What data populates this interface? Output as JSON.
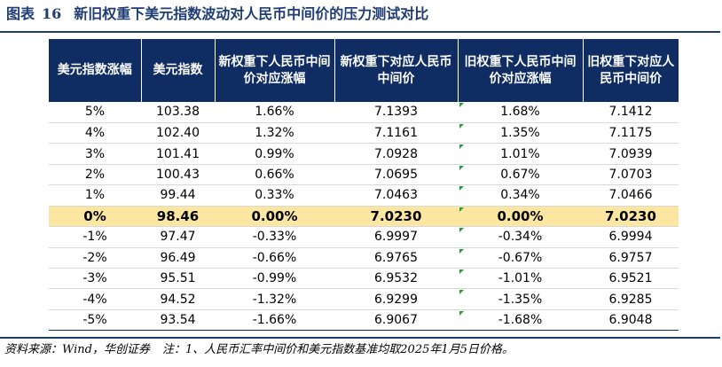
{
  "title": {
    "prefix": "图表",
    "number": "16",
    "text": "新旧权重下美元指数波动对人民币中间价的压力测试对比"
  },
  "table": {
    "headers": [
      "美元指数涨幅",
      "美元指数",
      "新权重下人民币中间价对应涨幅",
      "新权重下对应人民币中间价",
      "旧权重下人民币中间价对应涨幅",
      "旧权重下对应人民币中间价"
    ],
    "rows": [
      [
        "5%",
        "103.38",
        "1.66%",
        "7.1393",
        "1.68%",
        "7.1412"
      ],
      [
        "4%",
        "102.40",
        "1.32%",
        "7.1161",
        "1.35%",
        "7.1175"
      ],
      [
        "3%",
        "101.41",
        "0.99%",
        "7.0928",
        "1.01%",
        "7.0939"
      ],
      [
        "2%",
        "100.43",
        "0.66%",
        "7.0695",
        "0.67%",
        "7.0703"
      ],
      [
        "1%",
        "99.44",
        "0.33%",
        "7.0463",
        "0.34%",
        "7.0466"
      ],
      [
        "0%",
        "98.46",
        "0.00%",
        "7.0230",
        "0.00%",
        "7.0230"
      ],
      [
        "-1%",
        "97.47",
        "-0.33%",
        "6.9997",
        "-0.34%",
        "6.9994"
      ],
      [
        "-2%",
        "96.49",
        "-0.66%",
        "6.9765",
        "-0.67%",
        "6.9757"
      ],
      [
        "-3%",
        "95.51",
        "-0.99%",
        "6.9532",
        "-1.01%",
        "6.9521"
      ],
      [
        "-4%",
        "94.52",
        "-1.32%",
        "6.9299",
        "-1.35%",
        "6.9285"
      ],
      [
        "-5%",
        "93.54",
        "-1.66%",
        "6.9067",
        "-1.68%",
        "6.9048"
      ]
    ],
    "highlight_row": 5,
    "colors": {
      "header_bg": "#0f2c63",
      "highlight_bg": "#fbe6a2",
      "marker": "#2e9a39"
    }
  },
  "footer": {
    "source": "资料来源：Wind，华创证券",
    "note": "注：1、人民币汇率中间价和美元指数基准均取2025年1月5日价格。"
  }
}
